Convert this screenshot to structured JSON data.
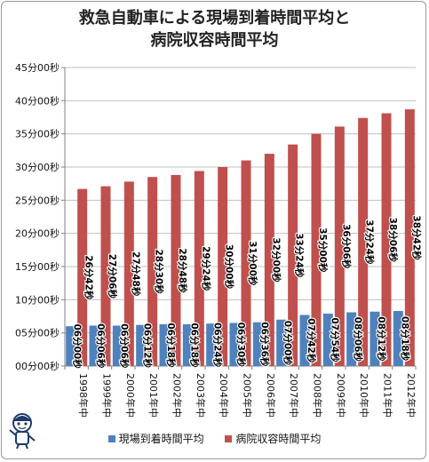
{
  "colors": {
    "series1": "#4f81bd",
    "series2": "#c0504d",
    "grid": "#bfbfbf",
    "axis": "#808080",
    "text": "#111111"
  },
  "chart_data": {
    "type": "bar",
    "title": "救急自動車による現場到着時間平均と病院収容時間平均",
    "title_lines": [
      "救急自動車による現場到着時間平均と",
      "病院収容時間平均"
    ],
    "categories": [
      "1998年中",
      "1999年中",
      "2000年中",
      "2001年中",
      "2002年中",
      "2003年中",
      "2004年中",
      "2005年中",
      "2006年中",
      "2007年中",
      "2008年中",
      "2009年中",
      "2010年中",
      "2011年中",
      "2012年中"
    ],
    "y_ticks": [
      "00分00秒",
      "05分00秒",
      "10分00秒",
      "15分00秒",
      "20分00秒",
      "25分00秒",
      "30分00秒",
      "35分00秒",
      "40分00秒",
      "45分00秒"
    ],
    "ylim_minutes": [
      0,
      45
    ],
    "grid": true,
    "legend_position": "bottom",
    "series": [
      {
        "name": "現場到着時間平均",
        "values_minutes": [
          6.0,
          6.1,
          6.1,
          6.2,
          6.3,
          6.3,
          6.4,
          6.5,
          6.6,
          7.0,
          7.7,
          7.9,
          8.1,
          8.2,
          8.3
        ],
        "labels": [
          "06分00秒",
          "06分06秒",
          "06分06秒",
          "06分12秒",
          "06分18秒",
          "06分18秒",
          "06分24秒",
          "06分30秒",
          "06分36秒",
          "07分00秒",
          "07分42秒",
          "07分54秒",
          "08分06秒",
          "08分12秒",
          "08分18秒"
        ]
      },
      {
        "name": "病院収容時間平均",
        "values_minutes": [
          26.7,
          27.1,
          27.8,
          28.5,
          28.8,
          29.4,
          30.0,
          31.0,
          32.0,
          33.4,
          35.0,
          36.1,
          37.4,
          38.1,
          38.7
        ],
        "labels": [
          "26分42秒",
          "27分06秒",
          "27分48秒",
          "28分30秒",
          "28分48秒",
          "29分24秒",
          "30分00秒",
          "31分00秒",
          "32分00秒",
          "33分24秒",
          "35分00秒",
          "36分06秒",
          "37分24秒",
          "38分06秒",
          "38分42秒"
        ]
      }
    ]
  }
}
